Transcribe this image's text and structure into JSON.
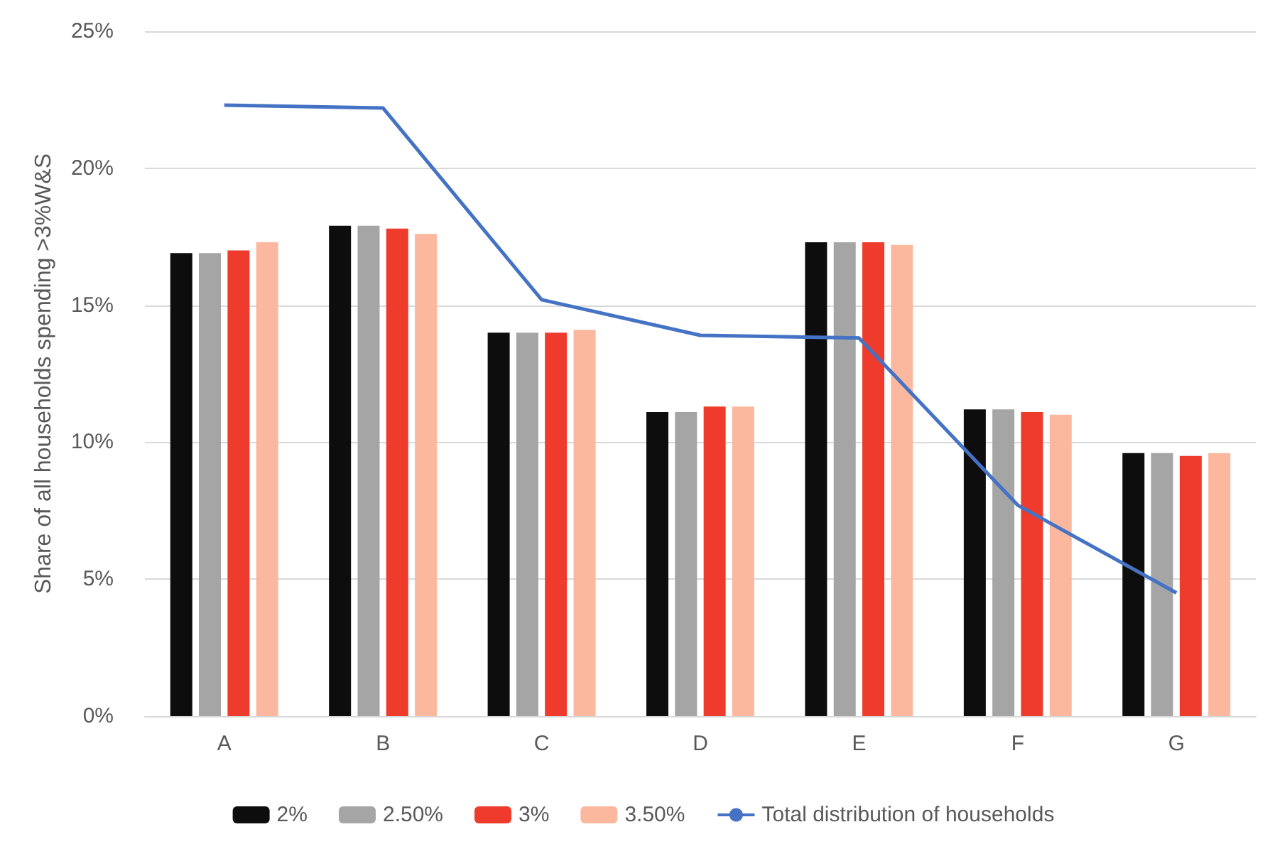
{
  "chart_data": {
    "type": "bar",
    "ylabel": "Share of all households spending >3%W&S",
    "categories": [
      "A",
      "B",
      "C",
      "D",
      "E",
      "F",
      "G"
    ],
    "series": [
      {
        "name": "2%",
        "color": "#0d0d0d",
        "values": [
          16.9,
          17.9,
          14.0,
          11.1,
          17.3,
          11.2,
          9.6
        ]
      },
      {
        "name": "2.50%",
        "color": "#a5a5a5",
        "values": [
          16.9,
          17.9,
          14.0,
          11.1,
          17.3,
          11.2,
          9.6
        ]
      },
      {
        "name": "3%",
        "color": "#ee3b2b",
        "values": [
          17.0,
          17.8,
          14.0,
          11.3,
          17.3,
          11.1,
          9.5
        ]
      },
      {
        "name": "3.50%",
        "color": "#fbb89e",
        "values": [
          17.3,
          17.6,
          14.1,
          11.3,
          17.2,
          11.0,
          9.6
        ]
      },
      {
        "name": "Total distribution of households",
        "type": "line",
        "color": "#4472c4",
        "marker": "none",
        "line_style": "solid",
        "values": [
          22.3,
          22.2,
          15.2,
          13.9,
          13.8,
          7.7,
          4.5
        ]
      }
    ],
    "ylim": [
      0,
      25
    ],
    "yticks": [
      {
        "value": 0,
        "label": "0%"
      },
      {
        "value": 5,
        "label": "5%"
      },
      {
        "value": 10,
        "label": "10%"
      },
      {
        "value": 15,
        "label": "15%"
      },
      {
        "value": 20,
        "label": "20%"
      },
      {
        "value": 25,
        "label": "25%"
      }
    ],
    "grid": "y",
    "legend": "bottom"
  }
}
